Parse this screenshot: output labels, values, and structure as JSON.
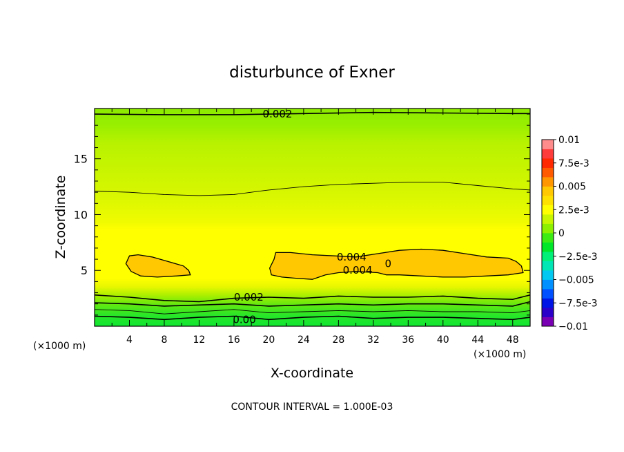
{
  "chart_data": {
    "type": "heatmap",
    "title": "disturbunce of Exner",
    "xlabel": "X-coordinate",
    "ylabel": "Z-coordinate",
    "x_unit": "(×1000 m)",
    "y_unit": "(×1000 m)",
    "xlim": [
      0,
      50
    ],
    "ylim": [
      0,
      19.5
    ],
    "x_ticks": [
      4,
      8,
      12,
      16,
      20,
      24,
      28,
      32,
      36,
      40,
      44,
      48
    ],
    "y_ticks": [
      5,
      10,
      15
    ],
    "footer": "CONTOUR INTERVAL = 1.000E-03",
    "colorbar": {
      "range": [
        -0.01,
        0.01
      ],
      "tick_labels": [
        "0.01",
        "7.5e-3",
        "0.005",
        "2.5e-3",
        "0",
        "−2.5e-3",
        "−0.005",
        "−7.5e-3",
        "−0.01"
      ],
      "colors": [
        "#7a00b4",
        "#2b00c8",
        "#0014e6",
        "#0050ff",
        "#0090ff",
        "#00c8f0",
        "#00e6b4",
        "#00f078",
        "#00e628",
        "#3ceb14",
        "#8cf000",
        "#c8f500",
        "#ffff00",
        "#ffe100",
        "#ffc800",
        "#ff9600",
        "#ff5a00",
        "#ff2800",
        "#ff3c3c",
        "#ff8c8c"
      ]
    },
    "contour_labels": [
      {
        "text": "0.002",
        "x": 21.0,
        "z": 19.0
      },
      {
        "text": "0.004",
        "x": 29.5,
        "z": 6.2
      },
      {
        "text": "0",
        "x": 33.7,
        "z": 5.6
      },
      {
        "text": "0.004",
        "x": 30.2,
        "z": 5.0
      },
      {
        "text": "0.002",
        "x": 17.7,
        "z": 2.6
      },
      {
        "text": "0.00",
        "x": 17.2,
        "z": 0.6
      }
    ],
    "contour_lines": [
      {
        "level": 0.002,
        "x": [
          0,
          8,
          16,
          24,
          32,
          40,
          48,
          50
        ],
        "z": [
          19.0,
          18.95,
          18.95,
          19.05,
          19.15,
          19.1,
          19.05,
          19.05
        ]
      },
      {
        "level": 0.003,
        "x": [
          0,
          4,
          8,
          12,
          16,
          20,
          24,
          28,
          32,
          36,
          40,
          44,
          48,
          50
        ],
        "z": [
          12.1,
          12.0,
          11.8,
          11.7,
          11.8,
          12.2,
          12.5,
          12.7,
          12.8,
          12.9,
          12.9,
          12.6,
          12.3,
          12.2
        ]
      },
      {
        "level": 0.002,
        "x": [
          0,
          4,
          8,
          12,
          16,
          20,
          24,
          28,
          32,
          36,
          40,
          44,
          48,
          50
        ],
        "z": [
          2.8,
          2.6,
          2.3,
          2.2,
          2.5,
          2.6,
          2.5,
          2.7,
          2.6,
          2.6,
          2.7,
          2.5,
          2.4,
          2.8
        ]
      },
      {
        "level": 0.002,
        "x": [
          0,
          4,
          8,
          12,
          16,
          20,
          24,
          28,
          32,
          36,
          40,
          44,
          48,
          50
        ],
        "z": [
          2.1,
          2.0,
          1.8,
          1.9,
          2.0,
          1.8,
          1.9,
          2.0,
          1.9,
          2.0,
          2.0,
          1.9,
          1.8,
          2.2
        ]
      },
      {
        "level": 0.001,
        "x": [
          0,
          4,
          8,
          12,
          16,
          20,
          24,
          28,
          32,
          36,
          40,
          44,
          48,
          50
        ],
        "z": [
          1.5,
          1.4,
          1.1,
          1.3,
          1.5,
          1.2,
          1.3,
          1.4,
          1.3,
          1.4,
          1.3,
          1.3,
          1.2,
          1.4
        ]
      },
      {
        "level": 0.0,
        "x": [
          0,
          4,
          8,
          12,
          16,
          20,
          24,
          28,
          32,
          36,
          40,
          44,
          48,
          50
        ],
        "z": [
          0.9,
          0.8,
          0.6,
          0.8,
          0.9,
          0.6,
          0.8,
          0.9,
          0.7,
          0.8,
          0.8,
          0.7,
          0.6,
          0.8
        ]
      },
      {
        "level": 0.004,
        "closed": true,
        "x": [
          4.0,
          5.0,
          6.6,
          8.4,
          10.2,
          10.8,
          11.0,
          9.4,
          7.2,
          5.3,
          4.2,
          3.6
        ],
        "z": [
          6.3,
          6.4,
          6.2,
          5.8,
          5.4,
          5.0,
          4.6,
          4.5,
          4.4,
          4.5,
          4.9,
          5.6
        ]
      },
      {
        "level": 0.004,
        "closed": true,
        "x": [
          20.8,
          22.5,
          25.0,
          27.5,
          30.0,
          32.5,
          35.0,
          37.5,
          40.0,
          42.5,
          45.0,
          47.5,
          48.4,
          49.0,
          49.2,
          47.5,
          45.0,
          42.5,
          40.0,
          37.5,
          35.0,
          33.5,
          32.5,
          30.0,
          28.0,
          26.5,
          25.0,
          23.0,
          21.5,
          20.3,
          20.1,
          20.6
        ],
        "z": [
          6.6,
          6.6,
          6.4,
          6.3,
          6.2,
          6.5,
          6.8,
          6.9,
          6.8,
          6.5,
          6.2,
          6.1,
          5.8,
          5.4,
          4.8,
          4.6,
          4.5,
          4.4,
          4.4,
          4.5,
          4.6,
          4.6,
          4.8,
          4.9,
          4.8,
          4.6,
          4.2,
          4.3,
          4.4,
          4.6,
          5.2,
          6.0
        ]
      }
    ]
  }
}
